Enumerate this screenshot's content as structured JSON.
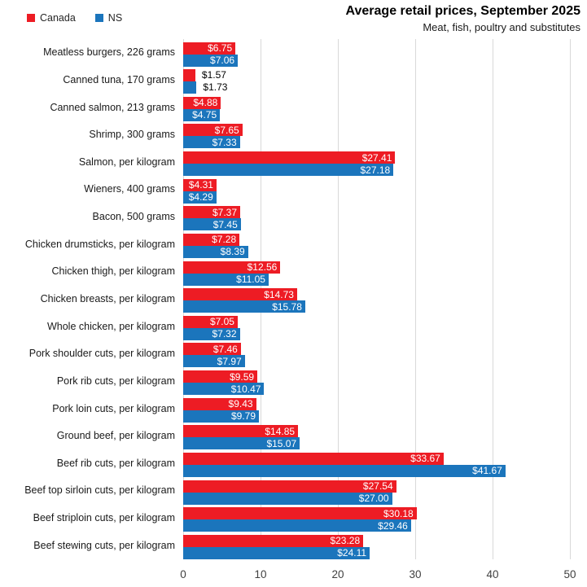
{
  "title": "Average retail prices, September 2025",
  "subtitle": "Meat, fish, poultry and substitutes",
  "legend": {
    "items": [
      {
        "label": "Canada",
        "color": "#ed1c24"
      },
      {
        "label": "NS",
        "color": "#1b75bc"
      }
    ]
  },
  "colors": {
    "canada": "#ed1c24",
    "ns": "#1b75bc",
    "gridline": "#d9d9d9",
    "inside_label": "#ffffff",
    "outside_label": "#000000"
  },
  "chart_data": {
    "type": "bar",
    "orientation": "horizontal",
    "title": "Average retail prices, September 2025",
    "subtitle": "Meat, fish, poultry and substitutes",
    "value_prefix": "$",
    "xlim": [
      0,
      50
    ],
    "xticks": [
      0,
      10,
      20,
      30,
      40,
      50
    ],
    "grid": true,
    "legend_position": "top-left",
    "categories": [
      "Meatless burgers, 226 grams",
      "Canned tuna, 170 grams",
      "Canned salmon, 213 grams",
      "Shrimp, 300 grams",
      "Salmon, per kilogram",
      "Wieners, 400 grams",
      "Bacon, 500 grams",
      "Chicken drumsticks, per kilogram",
      "Chicken thigh, per kilogram",
      "Chicken breasts, per kilogram",
      "Whole chicken, per kilogram",
      "Pork shoulder cuts, per kilogram",
      "Pork rib cuts, per kilogram",
      "Pork loin cuts, per kilogram",
      "Ground beef, per kilogram",
      "Beef rib cuts, per kilogram",
      "Beef top sirloin cuts, per kilogram",
      "Beef striploin cuts, per kilogram",
      "Beef stewing cuts, per kilogram"
    ],
    "series": [
      {
        "name": "Canada",
        "color": "#ed1c24",
        "values": [
          6.75,
          1.57,
          4.88,
          7.65,
          27.41,
          4.31,
          7.37,
          7.28,
          12.56,
          14.73,
          7.05,
          7.46,
          9.59,
          9.43,
          14.85,
          33.67,
          27.54,
          30.18,
          23.28
        ]
      },
      {
        "name": "NS",
        "color": "#1b75bc",
        "values": [
          7.06,
          1.73,
          4.75,
          7.33,
          27.18,
          4.29,
          7.45,
          8.39,
          11.05,
          15.78,
          7.32,
          7.97,
          10.47,
          9.79,
          15.07,
          41.67,
          27.0,
          29.46,
          24.11
        ]
      }
    ]
  }
}
